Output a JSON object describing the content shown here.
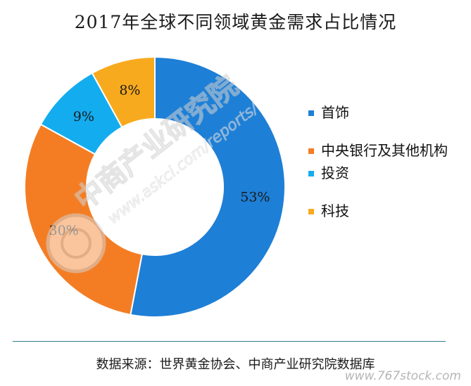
{
  "title": "2017年全球不同领域黄金需求占比情况",
  "chart_data": {
    "type": "pie",
    "variant": "donut",
    "categories": [
      "首饰",
      "中央银行及其他机构",
      "投资",
      "科技"
    ],
    "values": [
      53,
      30,
      9,
      8
    ],
    "value_labels": [
      "53%",
      "30%",
      "9%",
      "8%"
    ],
    "colors": [
      "#1e7fd6",
      "#f47d24",
      "#13acef",
      "#f8aa1e"
    ],
    "legend_position": "right",
    "start": "top, clockwise"
  },
  "legend": [
    {
      "label": "首饰",
      "color": "#1e7fd6"
    },
    {
      "label": "中央银行及其他机构",
      "color": "#f47d24"
    },
    {
      "label": "投资",
      "color": "#13acef"
    },
    {
      "label": "科技",
      "color": "#f8aa1e"
    }
  ],
  "source": "数据来源：世界黄金协会、中商产业研究院数据库",
  "watermark": {
    "brand": "中商产业研究院",
    "url": "www.askci.com/reports/",
    "corner": "www.767stock.com",
    "logo_icon": "askci-logo-icon"
  }
}
